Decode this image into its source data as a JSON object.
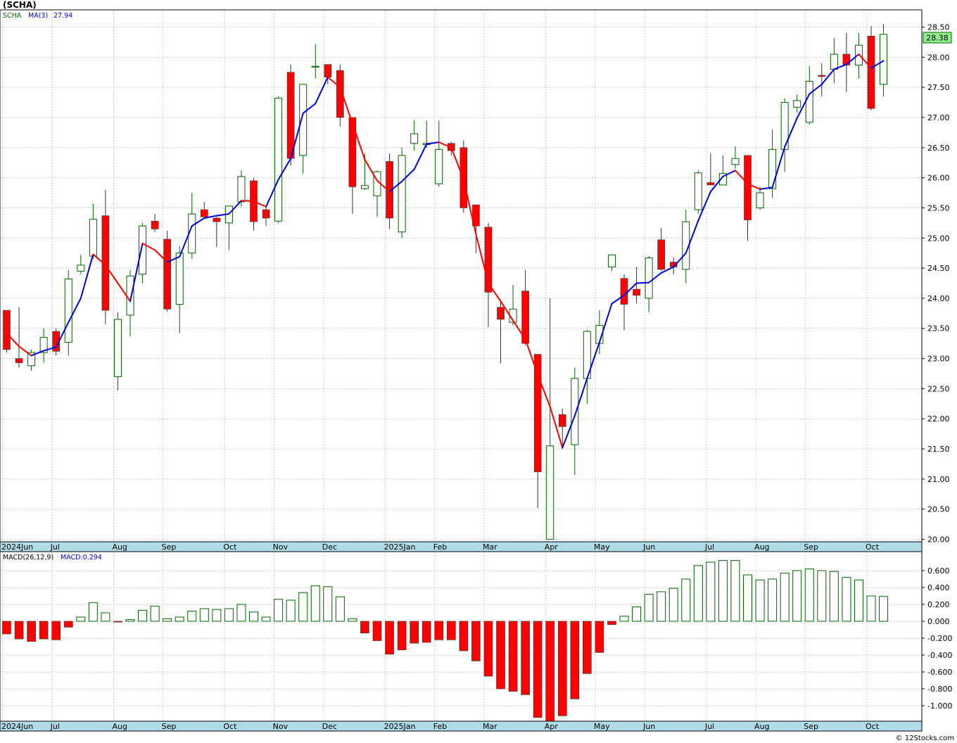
{
  "page": {
    "title": "(SCHA)",
    "price_legend": {
      "symbol": "SCHA",
      "ma_label": "MA(3)",
      "ma_value": "27.94"
    },
    "macd_legend": {
      "label": "MACD(26,12,9)",
      "value_label": "MACD:0.294"
    },
    "last_price_label": "28.38",
    "credit": "© 12Stocks.com"
  },
  "colors": {
    "up": "#006400",
    "down": "#ff0000",
    "ma_up": "#0000dd",
    "ma_down": "#ff0000",
    "axis_band": "#b0dce8",
    "grid": "#c8c8c8",
    "last_price_bg": "#8ff08f"
  },
  "chart_data": [
    {
      "type": "candlestick",
      "interval": "weekly",
      "symbol": "SCHA",
      "ylim": [
        20.0,
        28.5
      ],
      "yticks": [
        "28.50",
        "28.00",
        "27.50",
        "27.00",
        "26.50",
        "26.00",
        "25.50",
        "25.00",
        "24.50",
        "24.00",
        "23.50",
        "23.00",
        "22.50",
        "22.00",
        "21.50",
        "21.00",
        "20.50",
        "20.00"
      ],
      "x_labels": [
        {
          "index": 0,
          "label": "2024Jun"
        },
        {
          "index": 4,
          "label": "Jul"
        },
        {
          "index": 9,
          "label": "Aug"
        },
        {
          "index": 13,
          "label": "Sep"
        },
        {
          "index": 18,
          "label": "Oct"
        },
        {
          "index": 22,
          "label": "Nov"
        },
        {
          "index": 26,
          "label": "Dec"
        },
        {
          "index": 31,
          "label": "2025Jan"
        },
        {
          "index": 35,
          "label": "Feb"
        },
        {
          "index": 39,
          "label": "Mar"
        },
        {
          "index": 44,
          "label": "Apr"
        },
        {
          "index": 48,
          "label": "May"
        },
        {
          "index": 52,
          "label": "Jun"
        },
        {
          "index": 57,
          "label": "Jul"
        },
        {
          "index": 61,
          "label": "Aug"
        },
        {
          "index": 65,
          "label": "Sep"
        },
        {
          "index": 70,
          "label": "Oct"
        }
      ],
      "candles": [
        {
          "o": 23.8,
          "h": 23.8,
          "l": 23.1,
          "c": 23.15
        },
        {
          "o": 23.0,
          "h": 23.85,
          "l": 22.85,
          "c": 22.93
        },
        {
          "o": 22.88,
          "h": 23.15,
          "l": 22.8,
          "c": 23.1
        },
        {
          "o": 23.1,
          "h": 23.5,
          "l": 22.93,
          "c": 23.35
        },
        {
          "o": 23.45,
          "h": 23.5,
          "l": 23.05,
          "c": 23.12
        },
        {
          "o": 23.27,
          "h": 24.47,
          "l": 23.05,
          "c": 24.32
        },
        {
          "o": 24.45,
          "h": 24.72,
          "l": 24.4,
          "c": 24.55
        },
        {
          "o": 24.7,
          "h": 25.57,
          "l": 24.65,
          "c": 25.31
        },
        {
          "o": 25.37,
          "h": 25.8,
          "l": 23.57,
          "c": 23.8
        },
        {
          "o": 22.7,
          "h": 23.77,
          "l": 22.47,
          "c": 23.65
        },
        {
          "o": 23.72,
          "h": 24.47,
          "l": 23.37,
          "c": 24.37
        },
        {
          "o": 24.4,
          "h": 25.25,
          "l": 24.25,
          "c": 25.2
        },
        {
          "o": 25.28,
          "h": 25.4,
          "l": 25.1,
          "c": 25.15
        },
        {
          "o": 24.98,
          "h": 25.12,
          "l": 23.78,
          "c": 23.82
        },
        {
          "o": 23.9,
          "h": 24.87,
          "l": 23.42,
          "c": 24.75
        },
        {
          "o": 24.75,
          "h": 25.75,
          "l": 24.65,
          "c": 25.4
        },
        {
          "o": 25.47,
          "h": 25.6,
          "l": 25.35,
          "c": 25.35
        },
        {
          "o": 25.33,
          "h": 25.35,
          "l": 24.85,
          "c": 25.27
        },
        {
          "o": 25.25,
          "h": 25.52,
          "l": 24.8,
          "c": 25.53
        },
        {
          "o": 25.6,
          "h": 26.12,
          "l": 25.52,
          "c": 26.02
        },
        {
          "o": 25.95,
          "h": 26.0,
          "l": 25.12,
          "c": 25.27
        },
        {
          "o": 25.47,
          "h": 25.52,
          "l": 25.2,
          "c": 25.33
        },
        {
          "o": 25.28,
          "h": 27.35,
          "l": 25.25,
          "c": 27.32
        },
        {
          "o": 27.75,
          "h": 27.88,
          "l": 26.2,
          "c": 26.32
        },
        {
          "o": 26.37,
          "h": 27.55,
          "l": 26.07,
          "c": 27.55
        },
        {
          "o": 27.85,
          "h": 28.22,
          "l": 27.65,
          "c": 27.85
        },
        {
          "o": 27.88,
          "h": 27.88,
          "l": 27.55,
          "c": 27.67
        },
        {
          "o": 27.78,
          "h": 27.88,
          "l": 26.85,
          "c": 27.0
        },
        {
          "o": 27.0,
          "h": 27.0,
          "l": 25.4,
          "c": 25.85
        },
        {
          "o": 25.82,
          "h": 26.4,
          "l": 25.8,
          "c": 25.87
        },
        {
          "o": 25.7,
          "h": 26.12,
          "l": 25.35,
          "c": 26.1
        },
        {
          "o": 26.27,
          "h": 26.4,
          "l": 25.15,
          "c": 25.33
        },
        {
          "o": 25.1,
          "h": 26.5,
          "l": 25.0,
          "c": 26.37
        },
        {
          "o": 26.57,
          "h": 26.95,
          "l": 26.45,
          "c": 26.73
        },
        {
          "o": 26.55,
          "h": 26.95,
          "l": 26.5,
          "c": 26.57
        },
        {
          "o": 25.9,
          "h": 26.95,
          "l": 25.85,
          "c": 26.47
        },
        {
          "o": 26.57,
          "h": 26.6,
          "l": 26.37,
          "c": 26.45
        },
        {
          "o": 26.5,
          "h": 26.62,
          "l": 25.42,
          "c": 25.5
        },
        {
          "o": 25.55,
          "h": 25.55,
          "l": 24.75,
          "c": 25.2
        },
        {
          "o": 25.18,
          "h": 25.25,
          "l": 23.52,
          "c": 24.1
        },
        {
          "o": 23.85,
          "h": 23.97,
          "l": 22.92,
          "c": 23.65
        },
        {
          "o": 23.6,
          "h": 24.22,
          "l": 23.55,
          "c": 23.82
        },
        {
          "o": 24.12,
          "h": 24.47,
          "l": 23.22,
          "c": 23.25
        },
        {
          "o": 23.07,
          "h": 23.07,
          "l": 20.52,
          "c": 21.12
        },
        {
          "o": 20.0,
          "h": 24.0,
          "l": 20.0,
          "c": 21.55
        },
        {
          "o": 22.07,
          "h": 22.17,
          "l": 21.5,
          "c": 21.87
        },
        {
          "o": 21.57,
          "h": 22.85,
          "l": 21.07,
          "c": 22.67
        },
        {
          "o": 22.67,
          "h": 23.48,
          "l": 22.25,
          "c": 23.45
        },
        {
          "o": 23.25,
          "h": 23.8,
          "l": 23.07,
          "c": 23.55
        },
        {
          "o": 24.52,
          "h": 24.7,
          "l": 24.45,
          "c": 24.72
        },
        {
          "o": 24.33,
          "h": 24.4,
          "l": 23.47,
          "c": 23.9
        },
        {
          "o": 24.15,
          "h": 24.52,
          "l": 23.92,
          "c": 24.05
        },
        {
          "o": 24.0,
          "h": 24.7,
          "l": 23.77,
          "c": 24.67
        },
        {
          "o": 24.97,
          "h": 25.17,
          "l": 24.45,
          "c": 24.48
        },
        {
          "o": 24.6,
          "h": 24.68,
          "l": 24.4,
          "c": 24.52
        },
        {
          "o": 24.48,
          "h": 25.47,
          "l": 24.25,
          "c": 25.27
        },
        {
          "o": 25.47,
          "h": 26.12,
          "l": 25.4,
          "c": 26.08
        },
        {
          "o": 25.92,
          "h": 26.4,
          "l": 25.88,
          "c": 25.88
        },
        {
          "o": 25.88,
          "h": 26.37,
          "l": 25.88,
          "c": 26.07
        },
        {
          "o": 26.22,
          "h": 26.52,
          "l": 26.15,
          "c": 26.32
        },
        {
          "o": 26.37,
          "h": 26.37,
          "l": 24.95,
          "c": 25.3
        },
        {
          "o": 25.5,
          "h": 25.85,
          "l": 25.47,
          "c": 25.75
        },
        {
          "o": 25.82,
          "h": 26.8,
          "l": 25.67,
          "c": 26.47
        },
        {
          "o": 26.47,
          "h": 27.32,
          "l": 26.1,
          "c": 27.25
        },
        {
          "o": 27.17,
          "h": 27.38,
          "l": 27.08,
          "c": 27.28
        },
        {
          "o": 26.92,
          "h": 27.85,
          "l": 26.88,
          "c": 27.6
        },
        {
          "o": 27.7,
          "h": 27.9,
          "l": 27.35,
          "c": 27.68
        },
        {
          "o": 27.8,
          "h": 28.32,
          "l": 27.57,
          "c": 28.05
        },
        {
          "o": 28.05,
          "h": 28.4,
          "l": 27.42,
          "c": 27.87
        },
        {
          "o": 27.87,
          "h": 28.4,
          "l": 27.65,
          "c": 28.2
        },
        {
          "o": 28.35,
          "h": 28.52,
          "l": 27.12,
          "c": 27.15
        },
        {
          "o": 27.55,
          "h": 28.55,
          "l": 27.35,
          "c": 28.38
        }
      ],
      "ma": {
        "name": "MA(3)",
        "values": [
          23.42,
          23.2,
          23.05,
          23.13,
          23.19,
          23.6,
          24.0,
          24.73,
          24.55,
          24.25,
          23.95,
          24.91,
          24.8,
          24.6,
          24.69,
          25.2,
          25.33,
          25.37,
          25.4,
          25.62,
          25.61,
          25.52,
          25.97,
          26.32,
          27.07,
          27.23,
          27.67,
          27.5,
          26.9,
          26.3,
          25.95,
          25.77,
          25.94,
          26.14,
          26.56,
          26.59,
          26.5,
          25.97,
          25.06,
          24.25,
          23.95,
          23.63,
          23.32,
          22.73,
          22.2,
          21.52,
          22.05,
          22.67,
          23.27,
          23.91,
          24.05,
          24.25,
          24.26,
          24.42,
          24.52,
          24.75,
          25.29,
          25.77,
          26.02,
          26.12,
          25.9,
          25.81,
          25.84,
          26.51,
          26.99,
          27.39,
          27.55,
          27.8,
          27.88,
          28.05,
          27.82,
          27.94
        ]
      }
    },
    {
      "type": "bar",
      "name": "MACD(26,12,9)",
      "current": 0.294,
      "ylim": [
        -1.2,
        0.8
      ],
      "yticks": [
        "0.600",
        "0.400",
        "0.200",
        "0.000",
        "-0.200",
        "-0.400",
        "-0.600",
        "-0.800",
        "-1.000"
      ],
      "values": [
        -0.15,
        -0.21,
        -0.24,
        -0.21,
        -0.22,
        -0.07,
        0.05,
        0.22,
        0.1,
        -0.01,
        0.02,
        0.13,
        0.18,
        0.03,
        0.05,
        0.12,
        0.15,
        0.14,
        0.15,
        0.2,
        0.11,
        0.05,
        0.26,
        0.25,
        0.34,
        0.42,
        0.41,
        0.29,
        0.03,
        -0.14,
        -0.23,
        -0.39,
        -0.34,
        -0.26,
        -0.25,
        -0.22,
        -0.22,
        -0.35,
        -0.47,
        -0.65,
        -0.8,
        -0.83,
        -0.87,
        -1.14,
        -1.2,
        -1.12,
        -0.92,
        -0.62,
        -0.37,
        -0.04,
        0.06,
        0.17,
        0.32,
        0.35,
        0.39,
        0.5,
        0.66,
        0.7,
        0.72,
        0.72,
        0.55,
        0.49,
        0.5,
        0.57,
        0.6,
        0.62,
        0.6,
        0.59,
        0.52,
        0.49,
        0.3,
        0.294
      ]
    }
  ]
}
